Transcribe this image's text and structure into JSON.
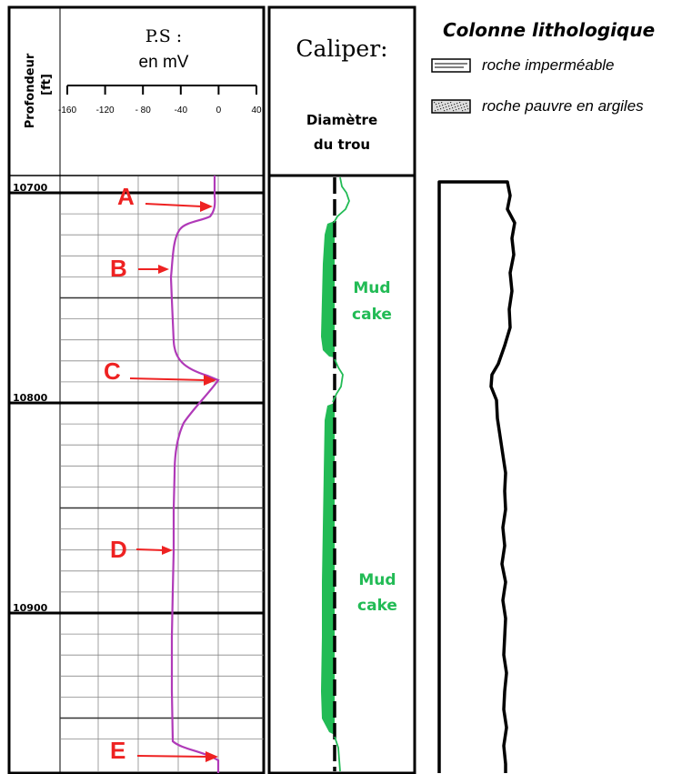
{
  "depth_header": {
    "label": "Profondeur",
    "unit": "[ft]"
  },
  "sp_track": {
    "title": "P.S :",
    "unit": "en mV",
    "scale_ticks": [
      "-160",
      "-120",
      "- 80",
      "-40",
      "0",
      "40"
    ],
    "scale_values": [
      -160,
      -120,
      -80,
      -40,
      0,
      40
    ],
    "curve_color": "#b03ab8"
  },
  "depth_axis": {
    "labels": [
      "10700",
      "10800",
      "10900"
    ],
    "values": [
      10700,
      10800,
      10900
    ],
    "range_ft": [
      10690,
      10960
    ]
  },
  "caliper_track": {
    "title": "Caliper:",
    "subtitle_line1": "Diamètre",
    "subtitle_line2": "du trou",
    "fill_color": "#22bb55"
  },
  "annotations": {
    "markers": [
      "A",
      "B",
      "C",
      "D",
      "E"
    ],
    "marker_color": "#ee2222",
    "mud_cake_1_line1": "Mud",
    "mud_cake_1_line2": "cake",
    "mud_cake_2_line1": "Mud",
    "mud_cake_2_line2": "cake"
  },
  "legend": {
    "title": "Colonne lithologique",
    "items": [
      "roche imperméable",
      "roche pauvre en argiles"
    ]
  }
}
